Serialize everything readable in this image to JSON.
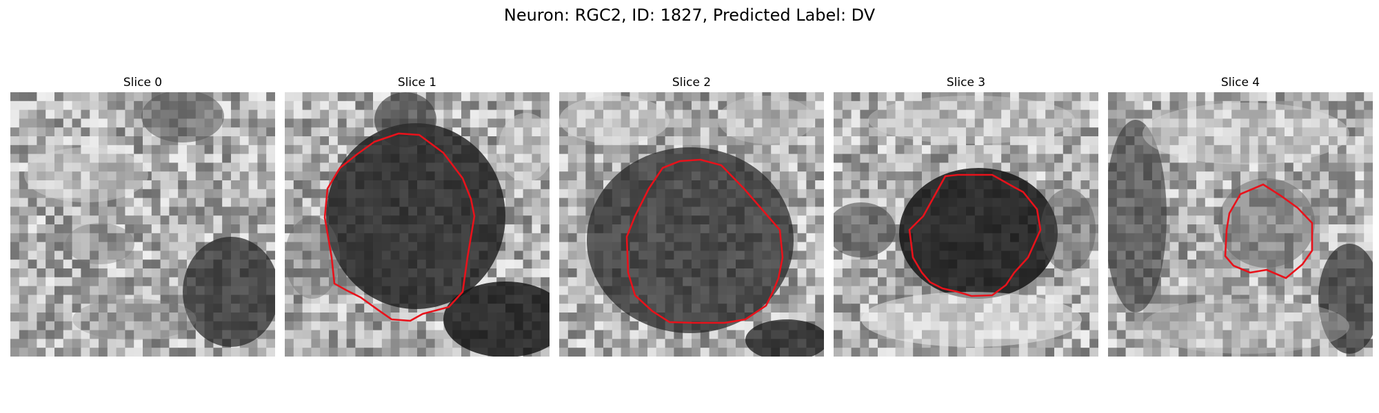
{
  "figure": {
    "title": "Neuron: RGC2, ID: 1827, Predicted Label: DV"
  },
  "slices": [
    {
      "title": "Slice 0",
      "contour": false
    },
    {
      "title": "Slice 1",
      "contour": true
    },
    {
      "title": "Slice 2",
      "contour": true
    },
    {
      "title": "Slice 3",
      "contour": true
    },
    {
      "title": "Slice 4",
      "contour": true
    }
  ],
  "colors": {
    "contour": "#e8121b",
    "background": "#ffffff"
  }
}
